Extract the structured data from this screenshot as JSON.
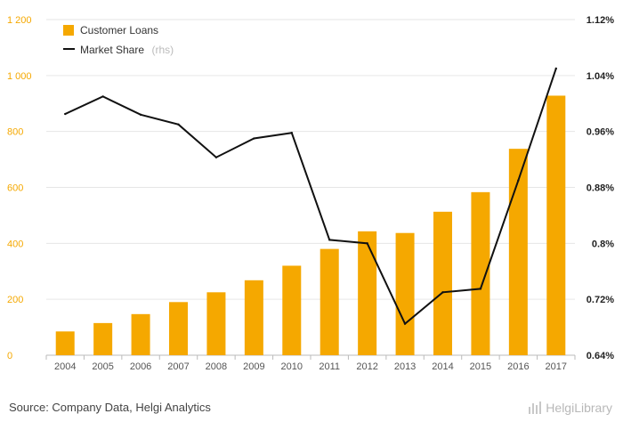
{
  "chart_data": {
    "type": "bar",
    "categories": [
      "2004",
      "2005",
      "2006",
      "2007",
      "2008",
      "2009",
      "2010",
      "2011",
      "2012",
      "2013",
      "2014",
      "2015",
      "2016",
      "2017"
    ],
    "series": [
      {
        "name": "Customer Loans",
        "type": "bar",
        "axis": "left",
        "values": [
          85,
          115,
          147,
          190,
          225,
          268,
          320,
          380,
          443,
          437,
          513,
          583,
          738,
          928
        ]
      },
      {
        "name": "Market Share",
        "name_note": "(rhs)",
        "type": "line",
        "axis": "right",
        "values": [
          0.985,
          1.01,
          0.984,
          0.97,
          0.923,
          0.95,
          0.958,
          0.805,
          0.8,
          0.685,
          0.73,
          0.735,
          0.89,
          1.05
        ]
      }
    ],
    "y_left": {
      "min": 0,
      "max": 1200,
      "ticks": [
        0,
        200,
        400,
        600,
        800,
        1000,
        1200
      ],
      "tick_labels": [
        "0",
        "200",
        "400",
        "600",
        "800",
        "1 000",
        "1 200"
      ]
    },
    "y_right": {
      "min": 0.64,
      "max": 1.12,
      "ticks": [
        0.64,
        0.72,
        0.8,
        0.88,
        0.96,
        1.04,
        1.12
      ],
      "tick_labels": [
        "0.64%",
        "0.72%",
        "0.8%",
        "0.88%",
        "0.96%",
        "1.04%",
        "1.12%"
      ]
    },
    "colors": {
      "bar": "#f5a800",
      "line": "#111111",
      "left_axis": "#f5a800",
      "right_axis": "#222222",
      "grid": "#e6e6e6"
    },
    "grid": true,
    "legend_position": "top-left"
  },
  "footer": {
    "source": "Source: Company Data, Helgi Analytics",
    "brand": "HelgiLibrary",
    "brand_icon": "helgi-logo-icon"
  }
}
